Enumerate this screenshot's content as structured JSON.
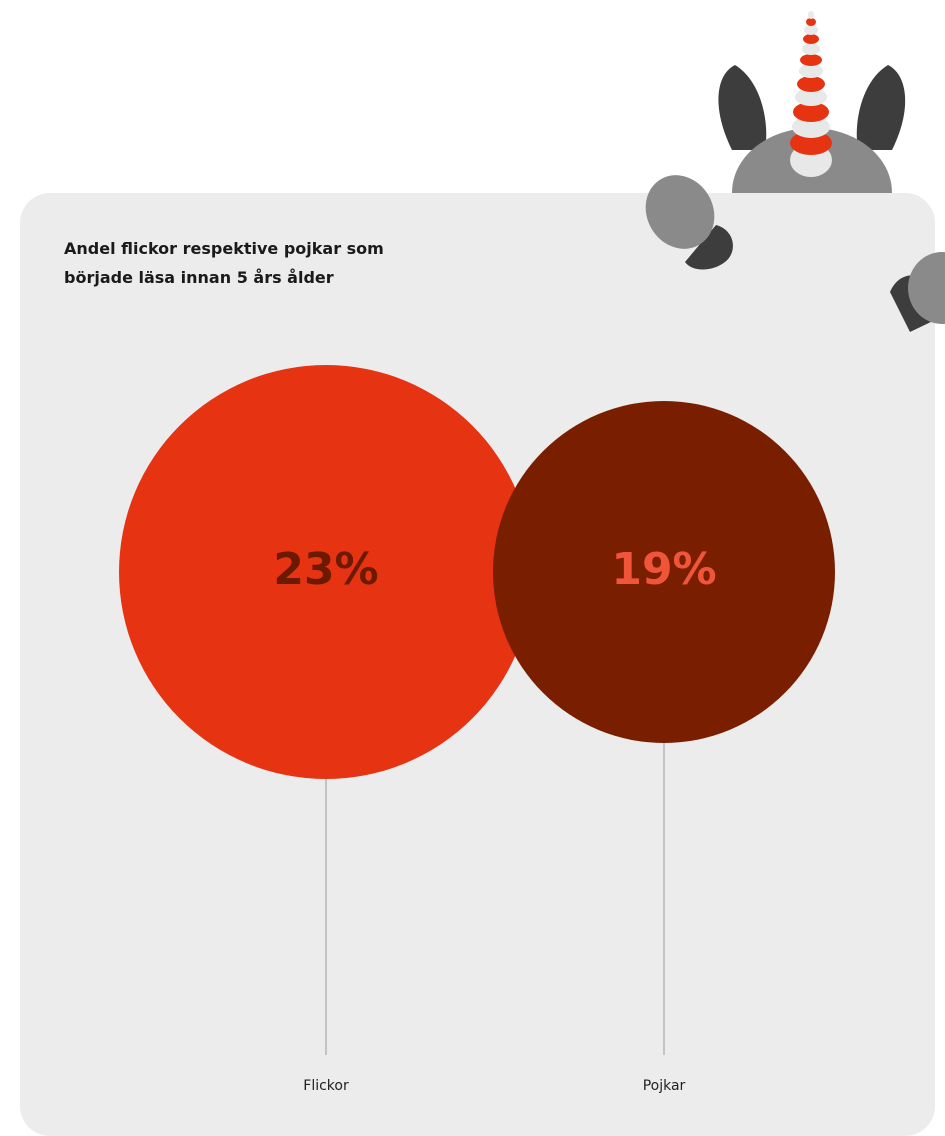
{
  "chart_data": {
    "type": "balloon",
    "title": "Andel flickor respektive pojkar som började läsa innan 5 års ålder",
    "categories": [
      "Flickor",
      "Pojkar"
    ],
    "values": [
      23,
      19
    ],
    "value_labels": [
      "23%",
      "19%"
    ],
    "colors": [
      "#e63312",
      "#7a1e00"
    ],
    "label_colors": [
      "#6b1a00",
      "#f0553a"
    ]
  }
}
